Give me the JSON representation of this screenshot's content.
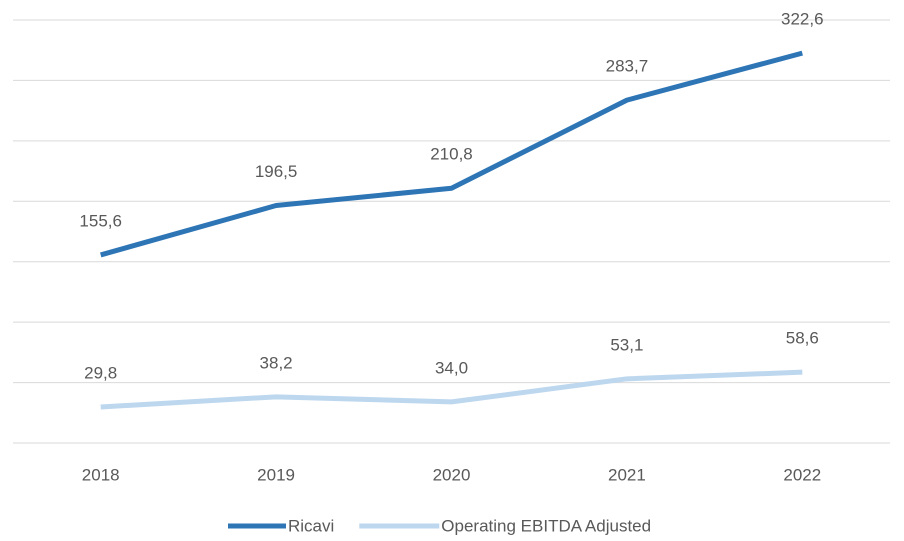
{
  "chart_data": {
    "type": "line",
    "categories": [
      "2018",
      "2019",
      "2020",
      "2021",
      "2022"
    ],
    "series": [
      {
        "name": "Ricavi",
        "color": "#2e75b6",
        "values": [
          155.6,
          196.5,
          210.8,
          283.7,
          322.6
        ],
        "value_labels": [
          "155,6",
          "196,5",
          "210,8",
          "283,7",
          "322,6"
        ]
      },
      {
        "name": "Operating EBITDA Adjusted",
        "color": "#bdd7ee",
        "values": [
          29.8,
          38.2,
          34.0,
          53.1,
          58.6
        ],
        "value_labels": [
          "29,8",
          "38,2",
          "34,0",
          "53,1",
          "58,6"
        ]
      }
    ],
    "ylim": [
      0,
      350
    ],
    "yticks": [
      0,
      50,
      100,
      150,
      200,
      250,
      300,
      350
    ],
    "grid": true,
    "legend": "bottom"
  }
}
